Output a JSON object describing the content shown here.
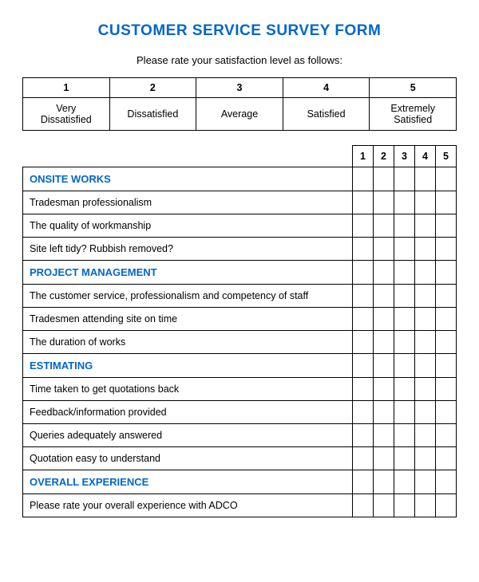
{
  "title": "CUSTOMER SERVICE SURVEY FORM",
  "subtitle": "Please rate your satisfaction level as follows:",
  "scale": {
    "numbers": [
      "1",
      "2",
      "3",
      "4",
      "5"
    ],
    "labels": [
      "Very Dissatisfied",
      "Dissatisfied",
      "Average",
      "Satisfied",
      "Extremely Satisfied"
    ]
  },
  "rating_cols": [
    "1",
    "2",
    "3",
    "4",
    "5"
  ],
  "sections": [
    {
      "heading": "ONSITE WORKS",
      "questions": [
        "Tradesman professionalism",
        "The quality of workmanship",
        "Site left tidy? Rubbish removed?"
      ]
    },
    {
      "heading": "PROJECT MANAGEMENT",
      "questions": [
        "The customer service, professionalism and competency of staff",
        "Tradesmen attending site on time",
        "The duration of works"
      ]
    },
    {
      "heading": "ESTIMATING",
      "questions": [
        "Time taken to get quotations back",
        "Feedback/information provided",
        "Queries adequately answered",
        "Quotation easy to understand"
      ]
    },
    {
      "heading": "OVERALL EXPERIENCE",
      "questions": [
        "Please rate your overall experience with ADCO"
      ]
    }
  ],
  "colors": {
    "heading": "#0066cc",
    "border": "#000000",
    "text": "#000000",
    "background": "#ffffff"
  }
}
